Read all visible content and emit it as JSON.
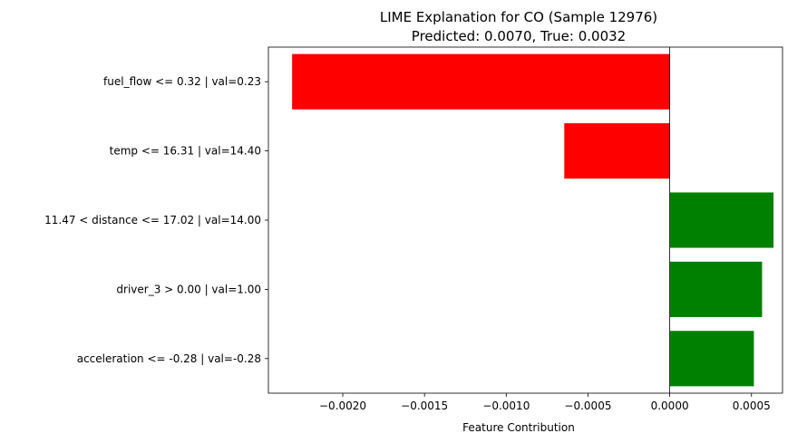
{
  "chart_data": {
    "type": "bar",
    "orientation": "horizontal",
    "title": "LIME Explanation for CO (Sample 12976)",
    "subtitle": "Predicted: 0.0070, True: 0.0032",
    "xlabel": "Feature Contribution",
    "ylabel": "",
    "categories": [
      "fuel_flow <= 0.32 | val=0.23",
      "temp <= 16.31 | val=14.40",
      "11.47 < distance <= 17.02 | val=14.00",
      "driver_3 > 0.00 | val=1.00",
      "acceleration <= -0.28 | val=-0.28"
    ],
    "values": [
      -0.00231,
      -0.000645,
      0.000635,
      0.000565,
      0.000515
    ],
    "xlim": [
      -0.002455,
      0.00069
    ],
    "xticks": [
      -0.002,
      -0.0015,
      -0.001,
      -0.0005,
      0.0,
      0.0005
    ],
    "xtick_labels": [
      "−0.0020",
      "−0.0015",
      "−0.0010",
      "−0.0005",
      "0.0000",
      "0.0005"
    ],
    "colors": {
      "negative": "#ff0000",
      "positive": "#008000",
      "zero_line": "#000000"
    },
    "grid": false,
    "legend": "none"
  }
}
